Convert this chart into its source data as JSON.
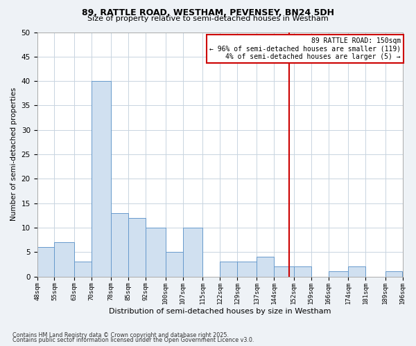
{
  "title1": "89, RATTLE ROAD, WESTHAM, PEVENSEY, BN24 5DH",
  "title2": "Size of property relative to semi-detached houses in Westham",
  "xlabel": "Distribution of semi-detached houses by size in Westham",
  "ylabel": "Number of semi-detached properties",
  "bin_edges": [
    48,
    55,
    63,
    70,
    78,
    85,
    92,
    100,
    107,
    115,
    122,
    129,
    137,
    144,
    152,
    159,
    166,
    174,
    181,
    189,
    196
  ],
  "bar_heights": [
    6,
    7,
    3,
    40,
    13,
    12,
    10,
    5,
    10,
    0,
    3,
    3,
    4,
    2,
    2,
    0,
    1,
    2,
    0,
    1
  ],
  "bar_color": "#d0e0f0",
  "bar_edge_color": "#6699cc",
  "vline_x": 150,
  "vline_color": "#cc0000",
  "annotation_title": "89 RATTLE ROAD: 150sqm",
  "annotation_line1": "← 96% of semi-detached houses are smaller (119)",
  "annotation_line2": "4% of semi-detached houses are larger (5) →",
  "annotation_box_color": "#ffffff",
  "annotation_box_edge": "#cc0000",
  "ylim": [
    0,
    50
  ],
  "yticks": [
    0,
    5,
    10,
    15,
    20,
    25,
    30,
    35,
    40,
    45,
    50
  ],
  "footnote1": "Contains HM Land Registry data © Crown copyright and database right 2025.",
  "footnote2": "Contains public sector information licensed under the Open Government Licence v3.0.",
  "bg_color": "#eef2f6",
  "plot_bg_color": "#ffffff",
  "grid_color": "#c8d4e0"
}
